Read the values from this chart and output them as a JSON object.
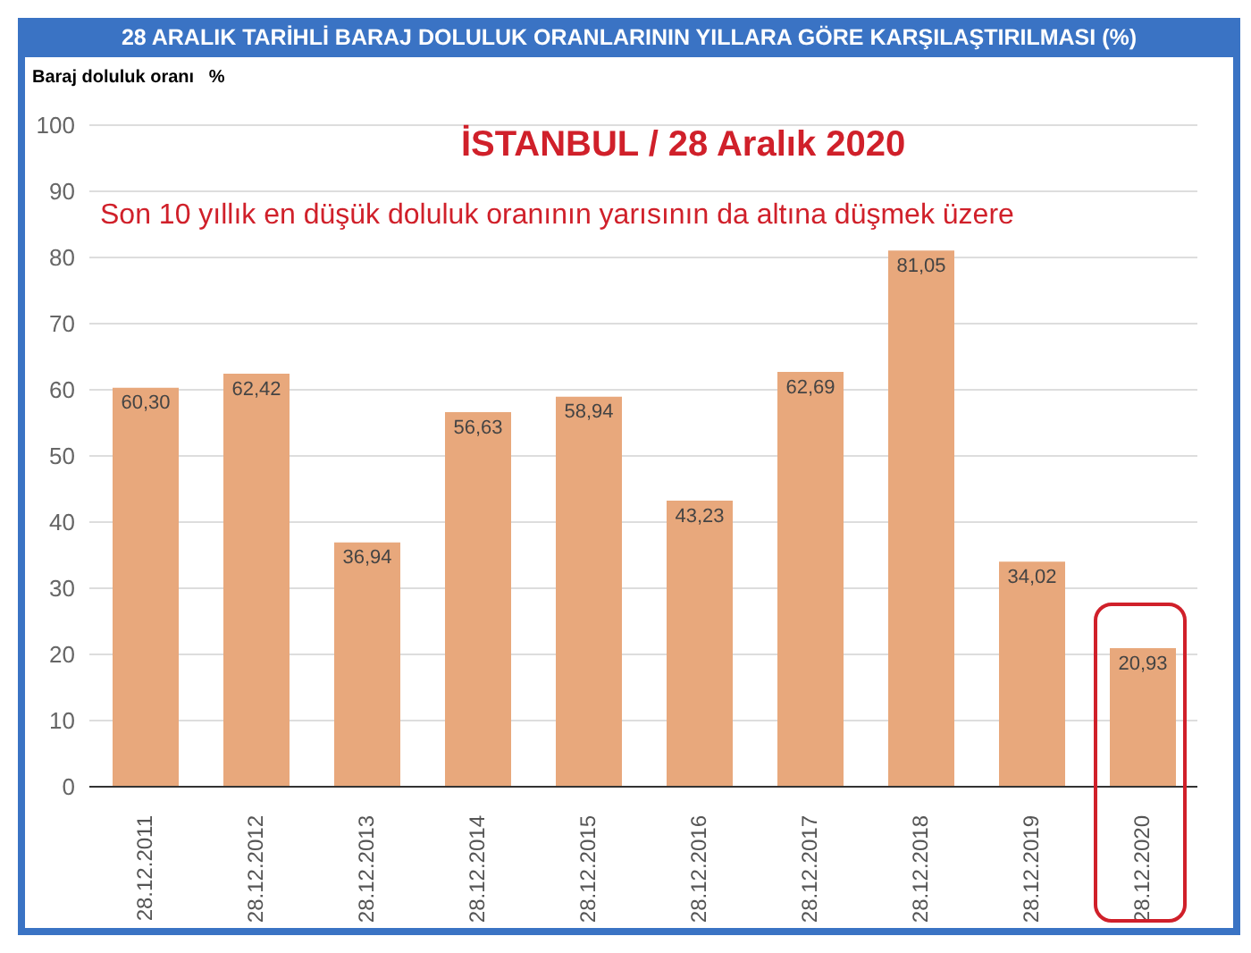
{
  "chart_data": {
    "type": "bar",
    "title": "28 ARALIK TARİHLİ BARAJ DOLULUK ORANLARININ YILLARA GÖRE KARŞILAŞTIRILMASI (%)",
    "ylabel": "Baraj doluluk oranı   %",
    "annotations": [
      "İSTANBUL / 28 Aralık 2020",
      "Son 10 yıllık en düşük doluluk oranının yarısının da altına düşmek üzere"
    ],
    "categories": [
      "28.12.2011",
      "28.12.2012",
      "28.12.2013",
      "28.12.2014",
      "28.12.2015",
      "28.12.2016",
      "28.12.2017",
      "28.12.2018",
      "28.12.2019",
      "28.12.2020"
    ],
    "values": [
      60.3,
      62.42,
      36.94,
      56.63,
      58.94,
      43.23,
      62.69,
      81.05,
      34.02,
      20.93
    ],
    "value_labels": [
      "60,30",
      "62,42",
      "36,94",
      "56,63",
      "58,94",
      "43,23",
      "62,69",
      "81,05",
      "34,02",
      "20,93"
    ],
    "color": "#e8a87c",
    "ylim": [
      0,
      100
    ],
    "yticks": [
      0,
      10,
      20,
      30,
      40,
      50,
      60,
      70,
      80,
      90,
      100
    ],
    "grid": "y",
    "legend": false
  }
}
